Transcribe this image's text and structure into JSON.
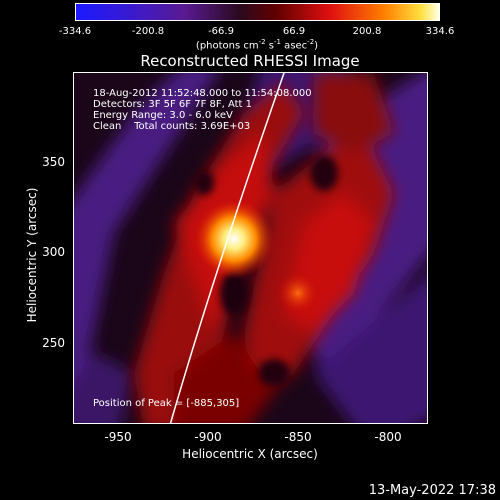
{
  "colorbar": {
    "ticks": [
      "-334.6",
      "-200.8",
      "-66.9",
      "66.9",
      "200.8",
      "334.6"
    ],
    "units_main": "(photons cm",
    "units_sup1": "-2",
    "units_mid": " s",
    "units_sup2": "-1",
    "units_mid2": " asec",
    "units_sup3": "-2",
    "units_end": ")"
  },
  "title": "Reconstructed RHESSI Image",
  "info": {
    "time_range": "18-Aug-2012 11:52:48.000 to 11:54:08.000",
    "detectors": "Detectors: 3F 5F 6F 7F 8F, Att 1",
    "energy": "Energy Range: 3.0 - 6.0 keV",
    "clean": "Clean    Total counts: 3.69E+03",
    "peak": "Position of Peak = [-885,305]"
  },
  "axes": {
    "xlabel": "Heliocentric X (arcsec)",
    "ylabel": "Heliocentric Y (arcsec)",
    "xticks": [
      "-950",
      "-900",
      "-850",
      "-800"
    ],
    "yticks": [
      "350",
      "300",
      "250"
    ]
  },
  "timestamp": "13-May-2022 17:38"
}
